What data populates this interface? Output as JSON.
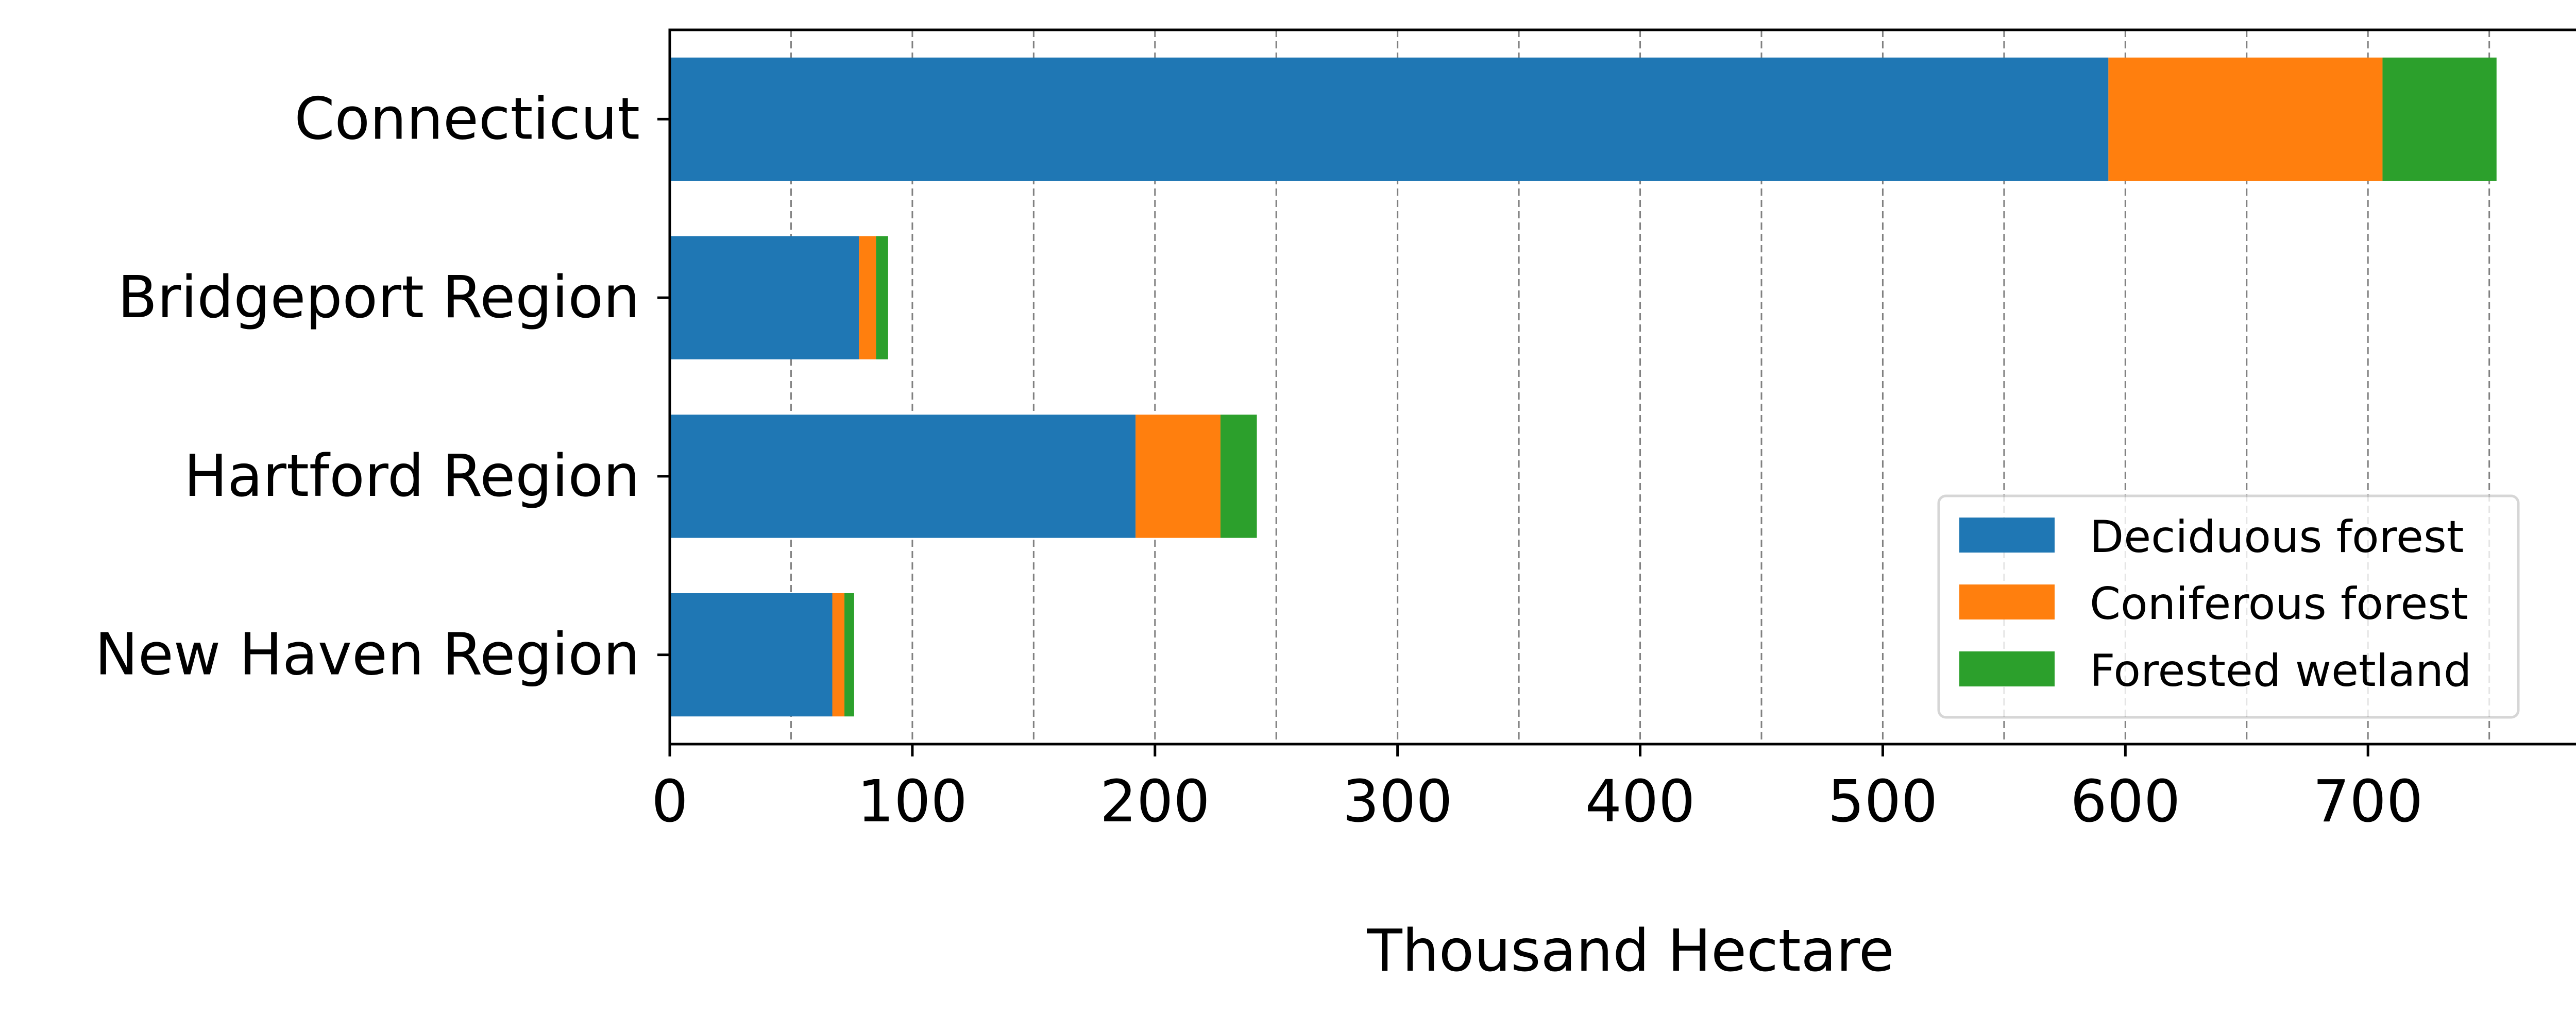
{
  "chart_data": {
    "type": "bar",
    "orientation": "horizontal",
    "stacked": true,
    "title": "",
    "xlabel": "Thousand Hectare",
    "ylabel": "",
    "categories": [
      "Connecticut",
      "Bridgeport Region",
      "Hartford Region",
      "New Haven Region"
    ],
    "series": [
      {
        "name": "Deciduous forest",
        "color": "#1f77b4",
        "values": [
          593,
          78,
          192,
          67
        ]
      },
      {
        "name": "Coniferous forest",
        "color": "#ff7f0e",
        "values": [
          113,
          7,
          35,
          5
        ]
      },
      {
        "name": "Forested wetland",
        "color": "#2ca02c",
        "values": [
          47,
          5,
          15,
          4
        ]
      }
    ],
    "xlim": [
      0,
      790
    ],
    "xticks": [
      0,
      100,
      200,
      300,
      400,
      500,
      600,
      700
    ],
    "xtick_labels": [
      "0",
      "100",
      "200",
      "300",
      "400",
      "500",
      "600",
      "700"
    ],
    "grid": {
      "axis": "x",
      "style": "dashed",
      "minor_step": 50
    },
    "legend": {
      "position": "lower-right"
    }
  }
}
